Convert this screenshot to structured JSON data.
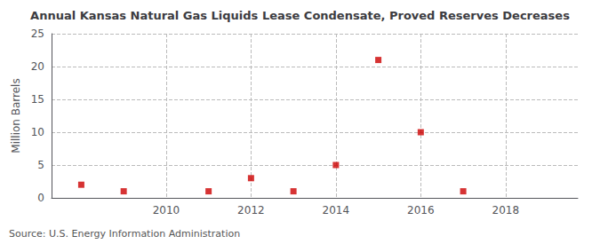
{
  "chart_data": {
    "type": "scatter",
    "title": "Annual Kansas Natural Gas Liquids Lease Condensate, Proved Reserves Decreases",
    "ylabel": "Million Barrels",
    "source": "Source: U.S. Energy Information Administration",
    "x": [
      2008,
      2009,
      2011,
      2012,
      2013,
      2014,
      2015,
      2016,
      2017
    ],
    "values": [
      2,
      1,
      1,
      3,
      1,
      5,
      21,
      10,
      1
    ],
    "color": "#cc0000",
    "marker": "square",
    "xlim": [
      2007.3,
      2019.7
    ],
    "xticks": [
      2010,
      2012,
      2014,
      2016,
      2018
    ],
    "ylim": [
      0,
      25
    ],
    "yticks": [
      0,
      5,
      10,
      15,
      20,
      25
    ],
    "grid": true
  }
}
